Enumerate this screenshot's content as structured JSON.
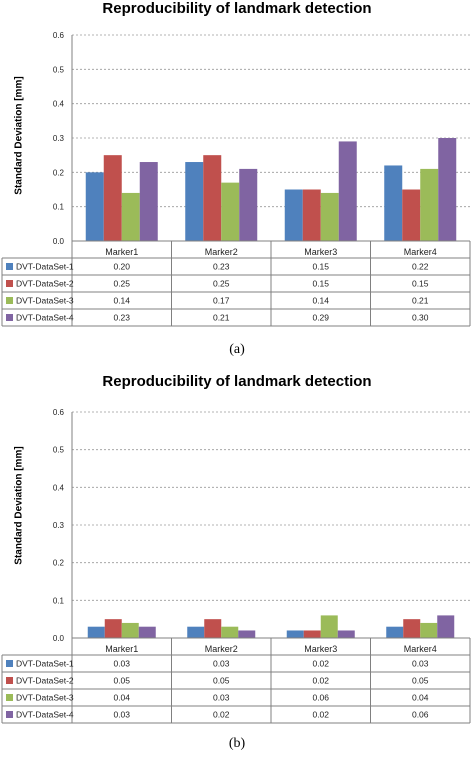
{
  "colors": {
    "DVT-DataSet-1": "#4F81BD",
    "DVT-DataSet-2": "#C0504D",
    "DVT-DataSet-3": "#9BBB59",
    "DVT-DataSet-4": "#8064A2"
  },
  "chart_data": [
    {
      "type": "bar",
      "panel_label": "(a)",
      "title": "Reproducibility of landmark detection",
      "ylabel": "Standard Deviation [mm]",
      "ylim": [
        0,
        0.6
      ],
      "yticks": [
        "0.0",
        "0.1",
        "0.2",
        "0.3",
        "0.4",
        "0.5",
        "0.6"
      ],
      "grid": true,
      "legend_placement": "data-table-left",
      "categories": [
        "Marker1",
        "Marker2",
        "Marker3",
        "Marker4"
      ],
      "series": [
        {
          "name": "DVT-DataSet-1",
          "values": [
            0.2,
            0.23,
            0.15,
            0.22
          ],
          "labels": [
            "0.20",
            "0.23",
            "0.15",
            "0.22"
          ]
        },
        {
          "name": "DVT-DataSet-2",
          "values": [
            0.25,
            0.25,
            0.15,
            0.15
          ],
          "labels": [
            "0.25",
            "0.25",
            "0.15",
            "0.15"
          ]
        },
        {
          "name": "DVT-DataSet-3",
          "values": [
            0.14,
            0.17,
            0.14,
            0.21
          ],
          "labels": [
            "0.14",
            "0.17",
            "0.14",
            "0.21"
          ]
        },
        {
          "name": "DVT-DataSet-4",
          "values": [
            0.23,
            0.21,
            0.29,
            0.3
          ],
          "labels": [
            "0.23",
            "0.21",
            "0.29",
            "0.30"
          ]
        }
      ]
    },
    {
      "type": "bar",
      "panel_label": "(b)",
      "title": "Reproducibility of landmark detection",
      "ylabel": "Standard Deviation [mm]",
      "ylim": [
        0,
        0.6
      ],
      "yticks": [
        "0.0",
        "0.1",
        "0.2",
        "0.3",
        "0.4",
        "0.5",
        "0.6"
      ],
      "grid": true,
      "legend_placement": "data-table-left",
      "categories": [
        "Marker1",
        "Marker2",
        "Marker3",
        "Marker4"
      ],
      "series": [
        {
          "name": "DVT-DataSet-1",
          "values": [
            0.03,
            0.03,
            0.02,
            0.03
          ],
          "labels": [
            "0.03",
            "0.03",
            "0.02",
            "0.03"
          ]
        },
        {
          "name": "DVT-DataSet-2",
          "values": [
            0.05,
            0.05,
            0.02,
            0.05
          ],
          "labels": [
            "0.05",
            "0.05",
            "0.02",
            "0.05"
          ]
        },
        {
          "name": "DVT-DataSet-3",
          "values": [
            0.04,
            0.03,
            0.06,
            0.04
          ],
          "labels": [
            "0.04",
            "0.03",
            "0.06",
            "0.04"
          ]
        },
        {
          "name": "DVT-DataSet-4",
          "values": [
            0.03,
            0.02,
            0.02,
            0.06
          ],
          "labels": [
            "0.03",
            "0.02",
            "0.02",
            "0.06"
          ]
        }
      ]
    }
  ]
}
